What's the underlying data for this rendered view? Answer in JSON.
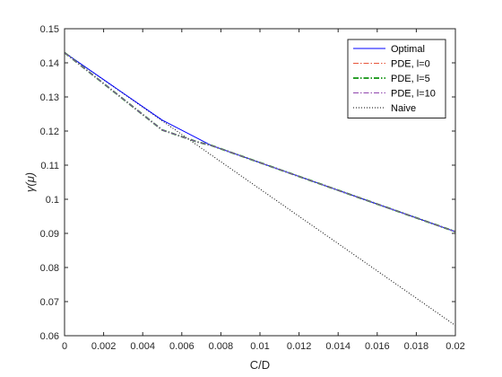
{
  "chart_data": {
    "type": "line",
    "xlabel": "C/D",
    "ylabel": "γ(μ)",
    "xlim": [
      0,
      0.02
    ],
    "ylim": [
      0.06,
      0.15
    ],
    "x_ticks": [
      0,
      0.002,
      0.004,
      0.006,
      0.008,
      0.01,
      0.012,
      0.014,
      0.016,
      0.018,
      0.02
    ],
    "x_tick_labels": [
      "0",
      "0.002",
      "0.004",
      "0.006",
      "0.008",
      "0.01",
      "0.012",
      "0.014",
      "0.016",
      "0.018",
      "0.02"
    ],
    "y_ticks": [
      0.06,
      0.07,
      0.08,
      0.09,
      0.1,
      0.11,
      0.12,
      0.13,
      0.14,
      0.15
    ],
    "y_tick_labels": [
      "0.06",
      "0.07",
      "0.08",
      "0.09",
      "0.1",
      "0.11",
      "0.12",
      "0.13",
      "0.14",
      "0.15"
    ],
    "grid": false,
    "legend_position": "top-right",
    "series": [
      {
        "name": "Optimal",
        "color": "#0000ff",
        "style": "solid",
        "x": [
          0,
          0.005,
          0.0075,
          0.02
        ],
        "y": [
          0.143,
          0.1232,
          0.1158,
          0.0905
        ]
      },
      {
        "name": "PDE, l=0",
        "color": "#e8553a",
        "style": "dashdot",
        "x": [
          0,
          0.005,
          0.0068,
          0.0075,
          0.02
        ],
        "y": [
          0.143,
          0.1203,
          0.1168,
          0.1158,
          0.0905
        ]
      },
      {
        "name": "PDE, l=5",
        "color": "#2ca02c",
        "style": "dashdot-thick",
        "x": [
          0,
          0.005,
          0.0068,
          0.0075,
          0.02
        ],
        "y": [
          0.143,
          0.1203,
          0.1168,
          0.1158,
          0.0905
        ]
      },
      {
        "name": "PDE, l=10",
        "color": "#8e44ad",
        "style": "dashdot",
        "x": [
          0,
          0.005,
          0.0068,
          0.0075,
          0.02
        ],
        "y": [
          0.143,
          0.1203,
          0.1168,
          0.1158,
          0.0905
        ]
      },
      {
        "name": "Naive",
        "color": "#000000",
        "style": "dotted",
        "x": [
          0,
          0.02
        ],
        "y": [
          0.143,
          0.063
        ]
      }
    ]
  }
}
